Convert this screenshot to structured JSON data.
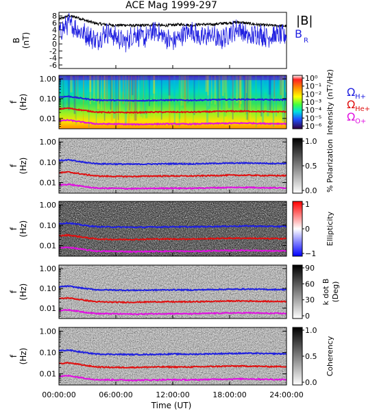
{
  "title": "ACE Mag 1999-297",
  "xaxis": {
    "label": "Time (UT)",
    "ticks": [
      "00:00:00",
      "06:00:00",
      "12:00:00",
      "18:00:00",
      "24:00:00"
    ],
    "range_hours": [
      0,
      24
    ]
  },
  "freq_axis": {
    "label_top": "f",
    "label_bottom": "(Hz)",
    "ticks": [
      "1.00",
      "0.10",
      "0.01"
    ],
    "range_hz": [
      0.003,
      1.5
    ],
    "scale": "log"
  },
  "legend": {
    "B_label": "|B|",
    "BR_label": "B",
    "BR_sub": "R",
    "omega": "Ω",
    "H_sub": "H+",
    "He_sub": "He+",
    "O_sub": "O+",
    "colors": {
      "black": "#000000",
      "blue": "#1f1fe0",
      "red": "#e01010",
      "magenta": "#e010e0"
    }
  },
  "chart_data": [
    {
      "panel": "magnetic-field",
      "type": "line",
      "ylabel_top": "B",
      "ylabel_bottom": "(nT)",
      "yticks": [
        "8",
        "6",
        "4",
        "2",
        "0",
        "-2",
        "-4",
        "-6"
      ],
      "ylim": [
        -7,
        9
      ],
      "x_hours": [
        0,
        1,
        2,
        3,
        4,
        5,
        6,
        7,
        8,
        9,
        10,
        11,
        12,
        13,
        14,
        15,
        16,
        17,
        18,
        19,
        20,
        21,
        22,
        23,
        24
      ],
      "series": [
        {
          "name": "|B|",
          "color": "#000000",
          "values": [
            7.0,
            8.0,
            7.5,
            6.5,
            5.8,
            5.5,
            5.3,
            5.4,
            5.2,
            5.3,
            5.5,
            5.2,
            5.4,
            5.6,
            5.3,
            5.6,
            5.5,
            5.8,
            6.0,
            6.2,
            5.8,
            5.5,
            5.3,
            5.2,
            5.1
          ]
        },
        {
          "name": "B_R",
          "color": "#1f1fe0",
          "values": [
            3.0,
            6.0,
            4.0,
            2.5,
            1.0,
            3.5,
            2.0,
            0.5,
            3.0,
            1.5,
            3.8,
            2.2,
            0.5,
            2.5,
            4.0,
            1.5,
            2.8,
            1.0,
            3.0,
            4.5,
            1.8,
            3.0,
            2.0,
            2.6,
            2.2
          ]
        }
      ]
    },
    {
      "panel": "intensity",
      "type": "heatmap",
      "colorbar_label": "Intensity (nT²/Hz)",
      "colorbar_ticks": [
        "10⁰",
        "10⁻¹",
        "10⁻²",
        "10⁻³",
        "10⁻⁴",
        "10⁻⁵",
        "10⁻⁶"
      ],
      "colormap": "rainbow"
    },
    {
      "panel": "polarization",
      "type": "heatmap",
      "colorbar_label": "% Polarization",
      "colorbar_ticks": [
        "1.0",
        "0.5",
        "0.0"
      ],
      "colormap": "gray"
    },
    {
      "panel": "ellipticity",
      "type": "heatmap",
      "colorbar_label": "Ellipticity",
      "colorbar_ticks": [
        "1",
        "0",
        "−1"
      ],
      "colormap": "red-white-blue"
    },
    {
      "panel": "k-dot-b",
      "type": "heatmap",
      "colorbar_label_top": "k dot B",
      "colorbar_label_bottom": "(Deg)",
      "colorbar_ticks": [
        "90",
        "60",
        "30",
        "0"
      ],
      "colormap": "gray"
    },
    {
      "panel": "coherency",
      "type": "heatmap",
      "colorbar_label": "Coherency",
      "colorbar_ticks": [
        "1.0",
        "0.5",
        "0.0"
      ],
      "colormap": "gray"
    },
    {
      "panel": "gyrofrequencies",
      "type": "line",
      "x_hours": [
        0,
        1,
        2,
        3,
        4,
        6,
        8,
        10,
        12,
        14,
        16,
        18,
        20,
        22,
        24
      ],
      "series": [
        {
          "name": "Ω H+",
          "color": "#1f1fe0",
          "values": [
            0.12,
            0.13,
            0.11,
            0.095,
            0.085,
            0.082,
            0.08,
            0.082,
            0.085,
            0.083,
            0.087,
            0.09,
            0.092,
            0.088,
            0.087
          ]
        },
        {
          "name": "Ω He+",
          "color": "#e01010",
          "values": [
            0.03,
            0.033,
            0.028,
            0.024,
            0.021,
            0.02,
            0.02,
            0.021,
            0.021,
            0.021,
            0.022,
            0.023,
            0.023,
            0.022,
            0.022
          ]
        },
        {
          "name": "Ω O+",
          "color": "#e010e0",
          "values": [
            0.0075,
            0.0082,
            0.007,
            0.006,
            0.0053,
            0.0052,
            0.005,
            0.0052,
            0.0053,
            0.0052,
            0.0055,
            0.0057,
            0.0058,
            0.0055,
            0.0054
          ]
        }
      ]
    }
  ]
}
